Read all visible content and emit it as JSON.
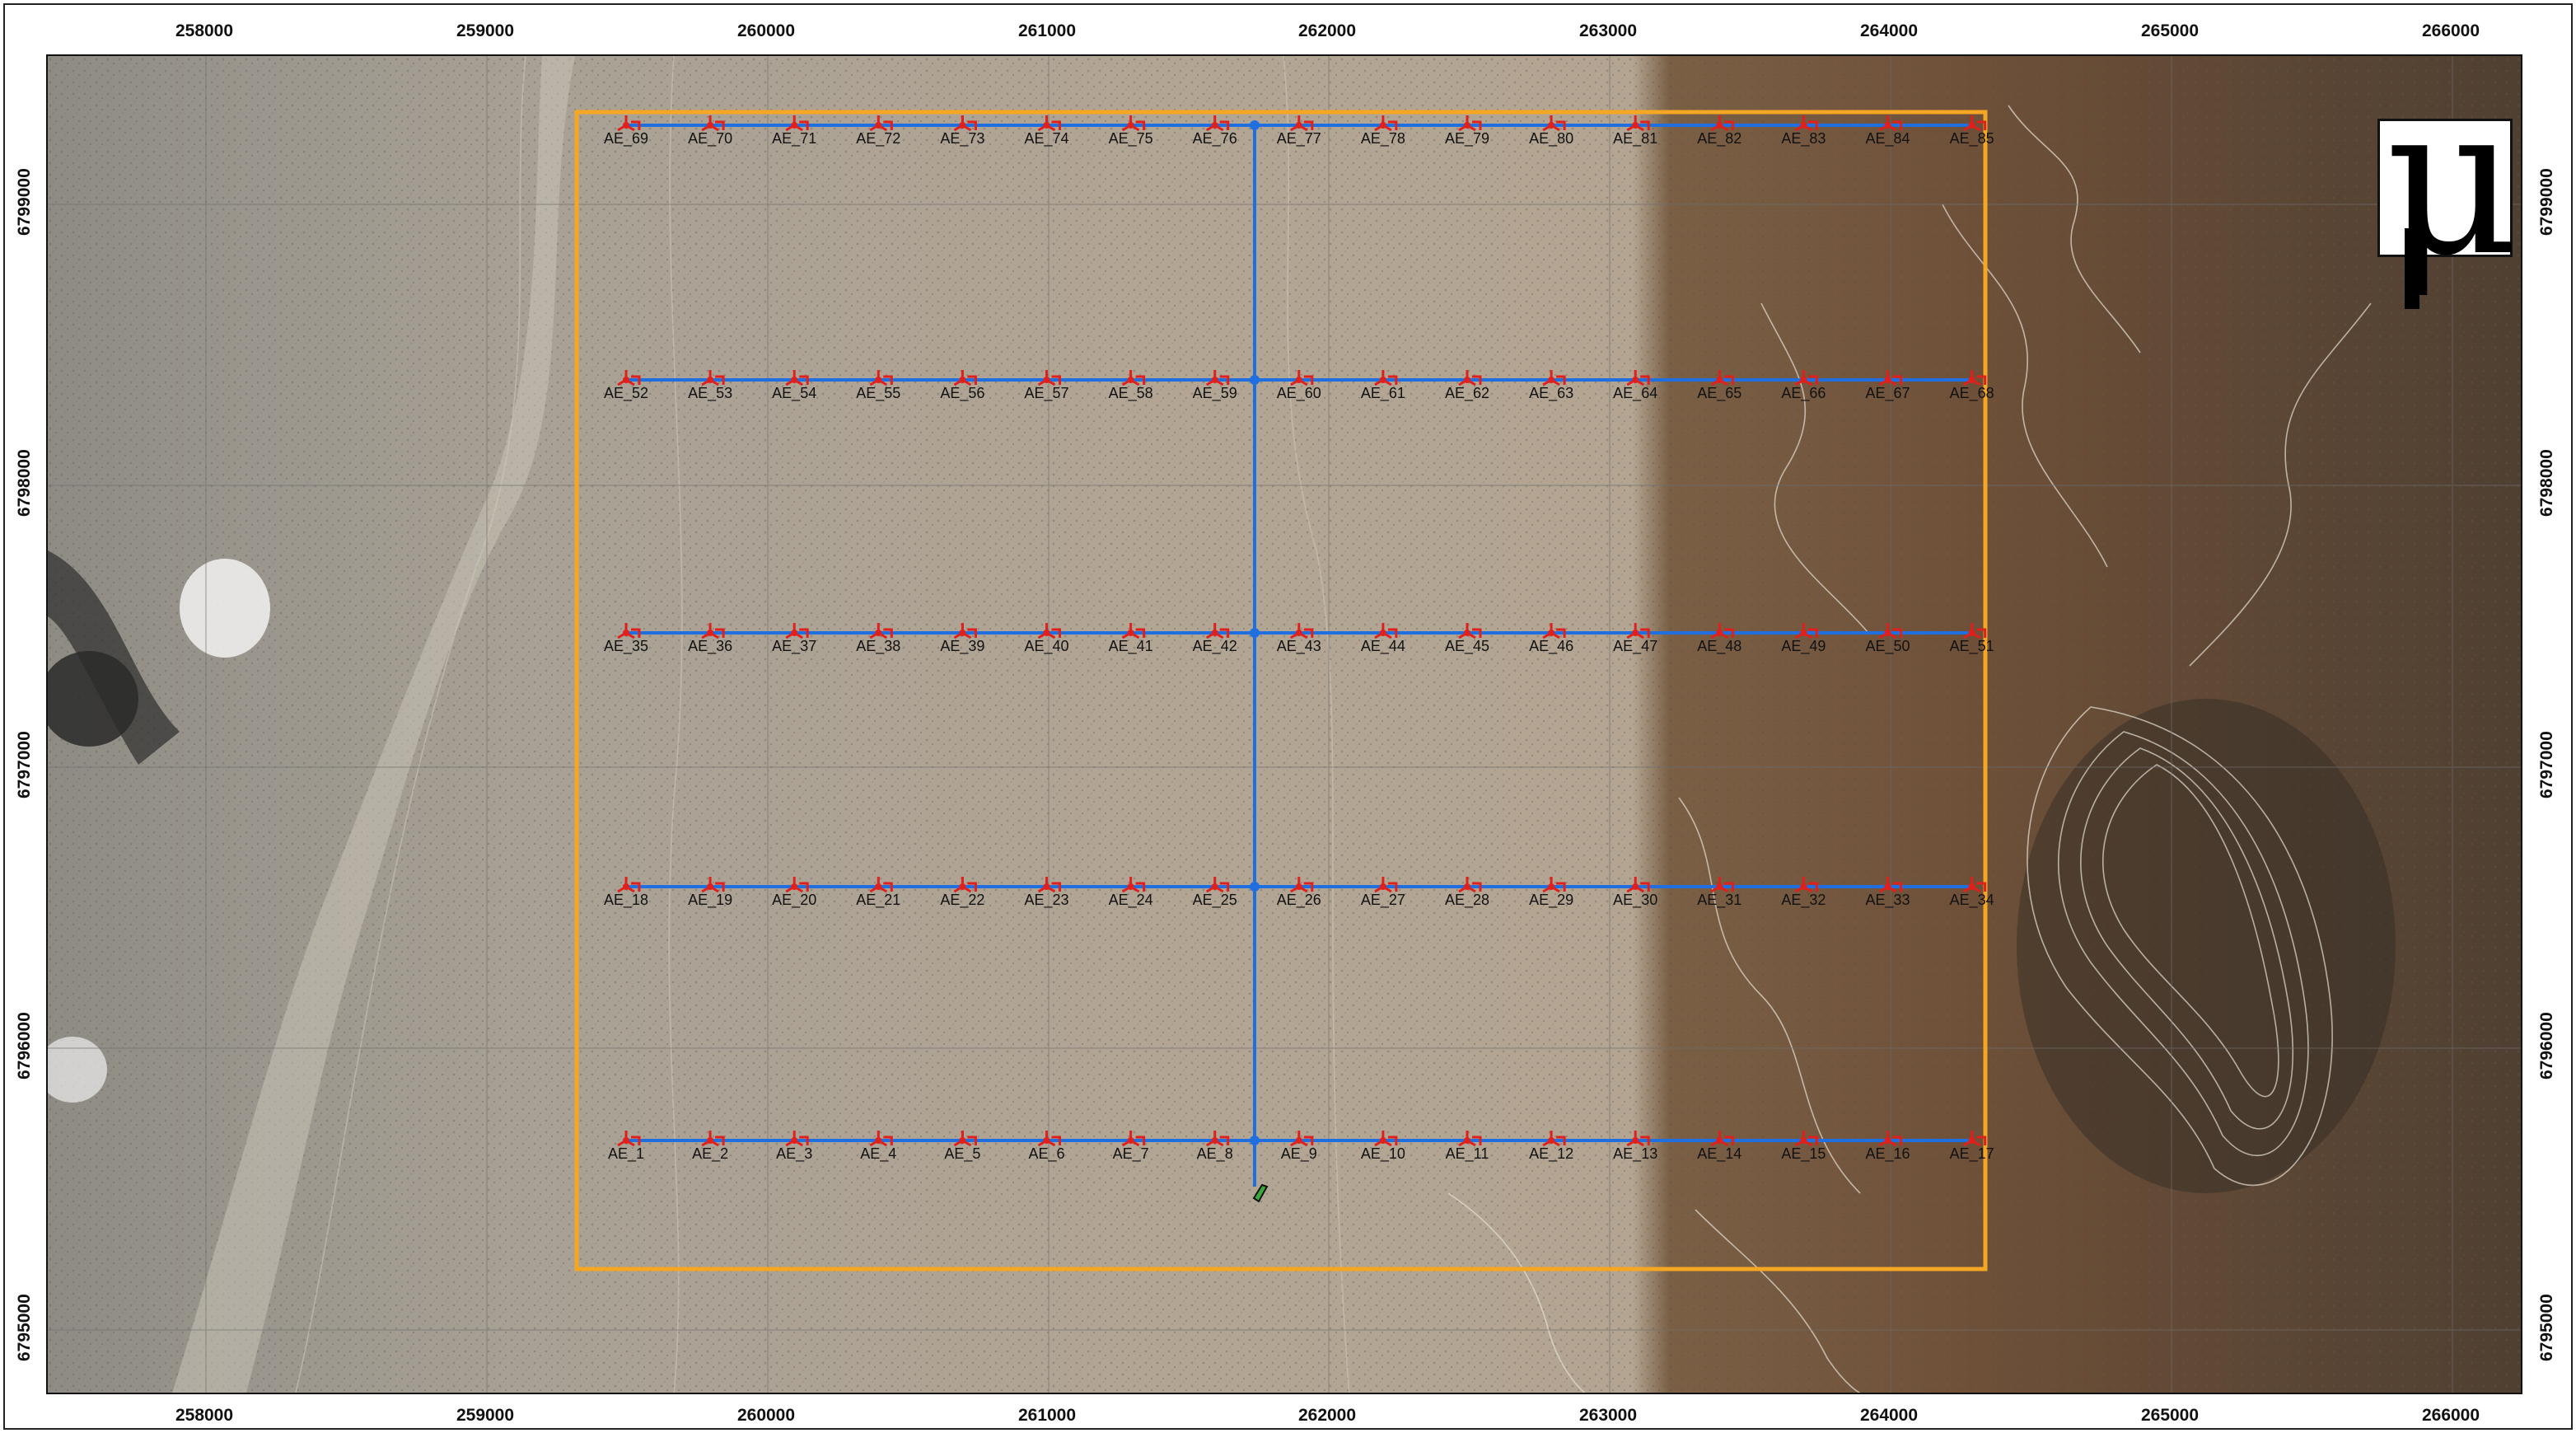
{
  "map": {
    "x_ticks": [
      "258000",
      "259000",
      "260000",
      "261000",
      "262000",
      "263000",
      "264000",
      "265000",
      "266000"
    ],
    "y_ticks": [
      "6799000",
      "6798000",
      "6797000",
      "6796000",
      "6795000"
    ],
    "north_symbol": "μ",
    "colors": {
      "boundary": "#f5a623",
      "cable": "#1f6fe0",
      "turbine": "#e0201c",
      "label": "#111111",
      "contour": "#d8d4c8",
      "substation": "#3aa83a"
    },
    "turbine_rows": [
      [
        "AE_69",
        "AE_70",
        "AE_71",
        "AE_72",
        "AE_73",
        "AE_74",
        "AE_75",
        "AE_76",
        "AE_77",
        "AE_78",
        "AE_79",
        "AE_80",
        "AE_81",
        "AE_82",
        "AE_83",
        "AE_84",
        "AE_85"
      ],
      [
        "AE_52",
        "AE_53",
        "AE_54",
        "AE_55",
        "AE_56",
        "AE_57",
        "AE_58",
        "AE_59",
        "AE_60",
        "AE_61",
        "AE_62",
        "AE_63",
        "AE_64",
        "AE_65",
        "AE_66",
        "AE_67",
        "AE_68"
      ],
      [
        "AE_35",
        "AE_36",
        "AE_37",
        "AE_38",
        "AE_39",
        "AE_40",
        "AE_41",
        "AE_42",
        "AE_43",
        "AE_44",
        "AE_45",
        "AE_46",
        "AE_47",
        "AE_48",
        "AE_49",
        "AE_50",
        "AE_51"
      ],
      [
        "AE_18",
        "AE_19",
        "AE_20",
        "AE_21",
        "AE_22",
        "AE_23",
        "AE_24",
        "AE_25",
        "AE_26",
        "AE_27",
        "AE_28",
        "AE_29",
        "AE_30",
        "AE_31",
        "AE_32",
        "AE_33",
        "AE_34"
      ],
      [
        "AE_1",
        "AE_2",
        "AE_3",
        "AE_4",
        "AE_5",
        "AE_6",
        "AE_7",
        "AE_8",
        "AE_9",
        "AE_10",
        "AE_11",
        "AE_12",
        "AE_13",
        "AE_14",
        "AE_15",
        "AE_16",
        "AE_17"
      ]
    ]
  }
}
